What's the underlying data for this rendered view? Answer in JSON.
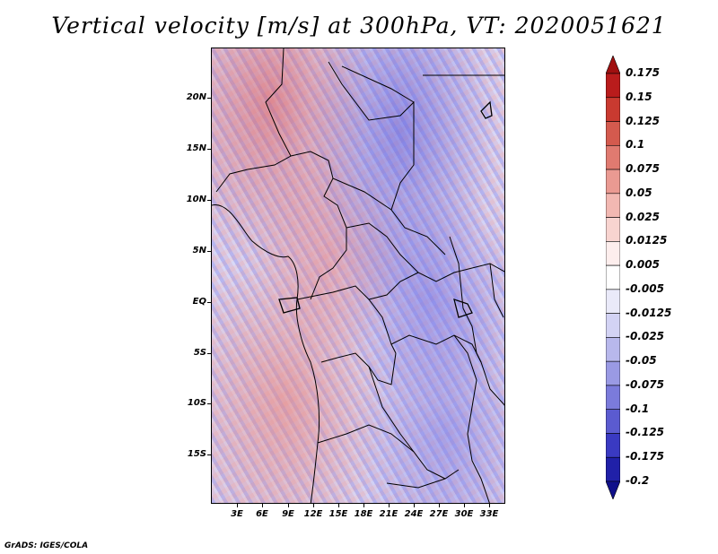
{
  "title": "Vertical velocity [m/s] at 300hPa, VT: 2020051621",
  "footer": "GrADS: IGES/COLA",
  "latitude_labels": [
    "20N",
    "15N",
    "10N",
    "5N",
    "EQ",
    "5S",
    "10S",
    "15S"
  ],
  "longitude_labels": [
    "3E",
    "6E",
    "9E",
    "12E",
    "15E",
    "18E",
    "21E",
    "24E",
    "27E",
    "30E",
    "33E"
  ],
  "colorbar": {
    "labels": [
      "0.175",
      "0.15",
      "0.125",
      "0.1",
      "0.075",
      "0.05",
      "0.025",
      "0.0125",
      "0.005",
      "-0.005",
      "-0.0125",
      "-0.025",
      "-0.05",
      "-0.075",
      "-0.1",
      "-0.125",
      "-0.175",
      "-0.2"
    ],
    "colors": [
      "#a01010",
      "#b91c1c",
      "#c93a30",
      "#d45a4e",
      "#e07a70",
      "#ea9a92",
      "#f2b8b2",
      "#f8d4d0",
      "#fdeeed",
      "#ffffff",
      "#eaeaf9",
      "#d3d3f4",
      "#b8b8ec",
      "#9a9ae4",
      "#7b7bdb",
      "#5b5bd0",
      "#3a3ac2",
      "#2020a8",
      "#10108a"
    ]
  }
}
